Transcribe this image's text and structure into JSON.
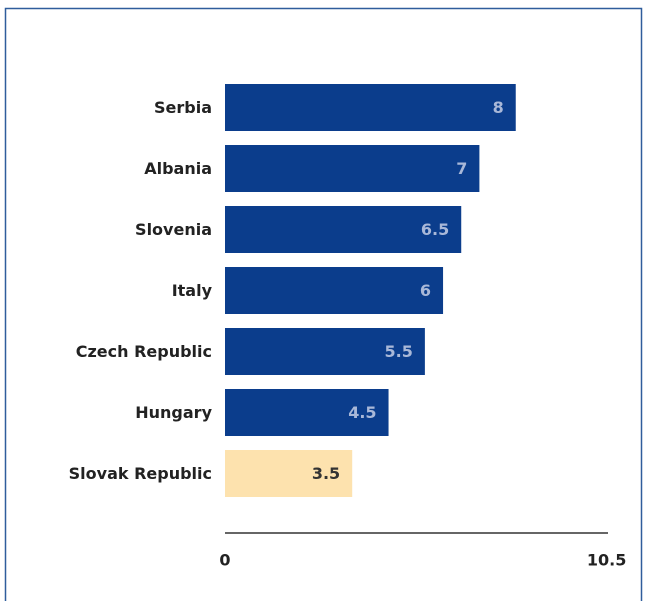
{
  "chart_data": {
    "type": "bar",
    "orientation": "horizontal",
    "categories": [
      "Serbia",
      "Albania",
      "Slovenia",
      "Italy",
      "Czech Republic",
      "Hungary",
      "Slovak Republic"
    ],
    "values": [
      8,
      7,
      6.5,
      6,
      5.5,
      4.5,
      3.5
    ],
    "colors": [
      "#0b3d8c",
      "#0b3d8c",
      "#0b3d8c",
      "#0b3d8c",
      "#0b3d8c",
      "#0b3d8c",
      "#fde2ae"
    ],
    "xlim": [
      0,
      10.5
    ],
    "xticks": [
      0,
      10.5
    ],
    "grid": false
  }
}
